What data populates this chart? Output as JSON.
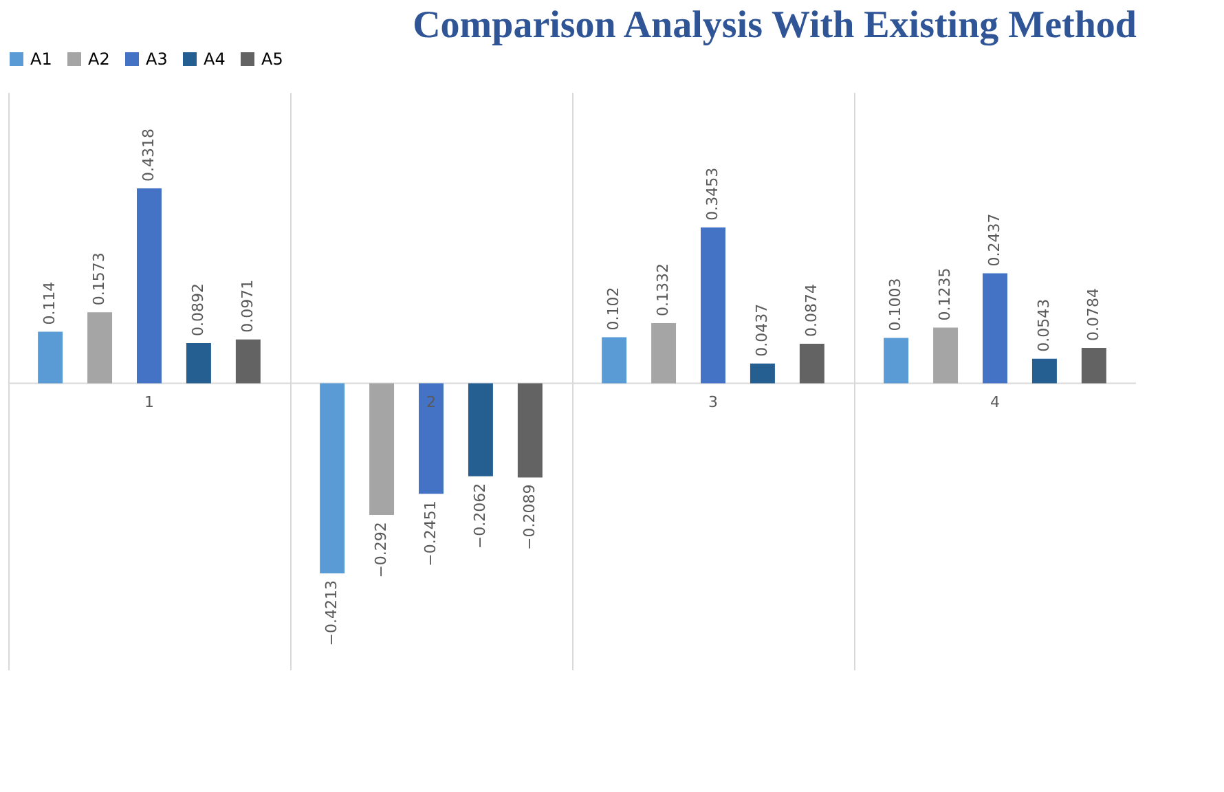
{
  "chart_data": {
    "type": "bar",
    "title": "Comparison Analysis With Existing Method",
    "categories": [
      "1",
      "2",
      "3",
      "4"
    ],
    "series": [
      {
        "name": "A1",
        "color": "#5b9bd5",
        "values": [
          0.114,
          -0.4213,
          0.102,
          0.1003
        ]
      },
      {
        "name": "A2",
        "color": "#a5a5a5",
        "values": [
          0.1573,
          -0.292,
          0.1332,
          0.1235
        ]
      },
      {
        "name": "A3",
        "color": "#4472c4",
        "values": [
          0.4318,
          -0.2451,
          0.3453,
          0.2437
        ]
      },
      {
        "name": "A4",
        "color": "#255e91",
        "values": [
          0.0892,
          -0.2062,
          0.0437,
          0.0543
        ]
      },
      {
        "name": "A5",
        "color": "#636363",
        "values": [
          0.0971,
          -0.2089,
          0.0874,
          0.0784
        ]
      }
    ],
    "tick_labels": "x",
    "grid": "x",
    "legend": "top",
    "data_labels": true
  }
}
